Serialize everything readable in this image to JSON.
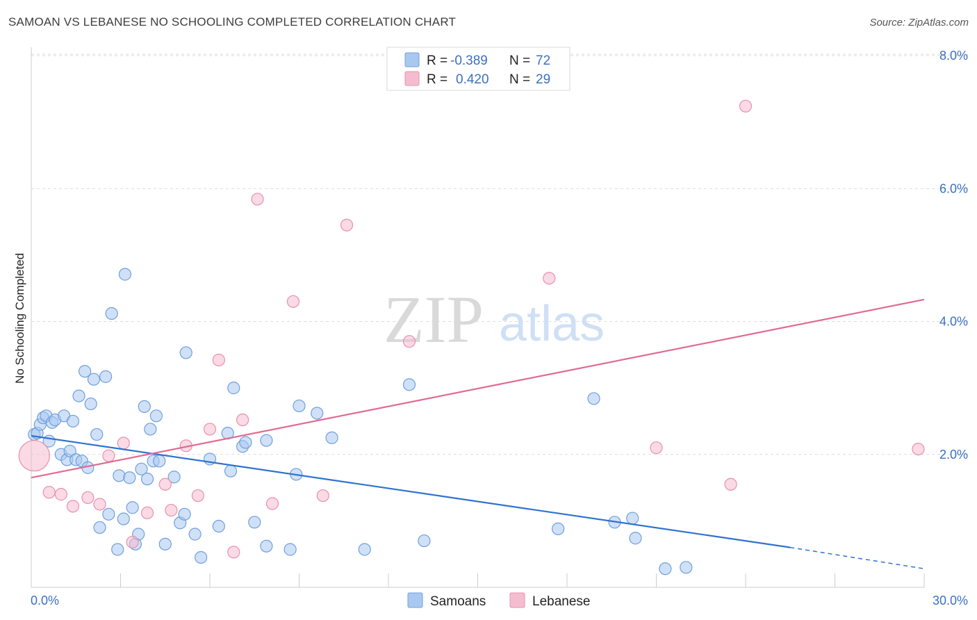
{
  "title": "SAMOAN VS LEBANESE NO SCHOOLING COMPLETED CORRELATION CHART",
  "source": "Source: ZipAtlas.com",
  "watermark": {
    "zip": "ZIP",
    "atlas": "atlas"
  },
  "legend": {
    "r_label": "R =",
    "n_label": "N =",
    "rows": [
      {
        "r": "-0.389",
        "n": "72"
      },
      {
        "r": "0.420",
        "n": "29"
      }
    ]
  },
  "colors": {
    "samoans_fill": "#a9c8f0",
    "samoans_stroke": "#6f9fdc",
    "samoans_line": "#2f72d0",
    "lebanese_fill": "#f5bcd0",
    "lebanese_stroke": "#e890ad",
    "lebanese_line": "#e06a93",
    "axis_text": "#3a6fc4"
  },
  "chart_data": {
    "type": "scatter",
    "title": "SAMOAN VS LEBANESE NO SCHOOLING COMPLETED CORRELATION CHART",
    "xlabel": "",
    "ylabel": "No Schooling Completed",
    "xlim": [
      0,
      30
    ],
    "ylim": [
      0,
      8.5
    ],
    "x_tick_labels": [
      "0.0%",
      "30.0%"
    ],
    "y_ticks": [
      2,
      4,
      6,
      8
    ],
    "y_tick_labels": [
      "2.0%",
      "4.0%",
      "6.0%",
      "8.0%"
    ],
    "grid": true,
    "series": [
      {
        "name": "Samoans",
        "r": -0.389,
        "n": 72,
        "trend": {
          "x0": 0,
          "y0": 2.28,
          "x1": 25.5,
          "y1": 0.6,
          "dash_to_x": 30,
          "dash_to_y": 0.28
        },
        "points": [
          [
            0.1,
            2.3
          ],
          [
            0.2,
            2.32
          ],
          [
            0.3,
            2.45
          ],
          [
            0.4,
            2.55
          ],
          [
            0.5,
            2.58
          ],
          [
            0.6,
            2.2
          ],
          [
            0.7,
            2.48
          ],
          [
            0.8,
            2.52
          ],
          [
            1.0,
            2.0
          ],
          [
            1.1,
            2.58
          ],
          [
            1.2,
            1.92
          ],
          [
            1.3,
            2.05
          ],
          [
            1.4,
            2.5
          ],
          [
            1.5,
            1.92
          ],
          [
            1.6,
            2.88
          ],
          [
            1.7,
            1.9
          ],
          [
            1.8,
            3.25
          ],
          [
            1.9,
            1.8
          ],
          [
            2.0,
            2.76
          ],
          [
            2.1,
            3.13
          ],
          [
            2.2,
            2.3
          ],
          [
            2.3,
            0.9
          ],
          [
            2.5,
            3.17
          ],
          [
            2.6,
            1.1
          ],
          [
            2.7,
            4.12
          ],
          [
            2.9,
            0.57
          ],
          [
            2.95,
            1.68
          ],
          [
            3.1,
            1.03
          ],
          [
            3.15,
            4.71
          ],
          [
            3.3,
            1.65
          ],
          [
            3.4,
            1.2
          ],
          [
            3.5,
            0.65
          ],
          [
            3.6,
            0.8
          ],
          [
            3.7,
            1.78
          ],
          [
            3.8,
            2.72
          ],
          [
            3.9,
            1.63
          ],
          [
            4.0,
            2.38
          ],
          [
            4.1,
            1.9
          ],
          [
            4.2,
            2.58
          ],
          [
            4.3,
            1.9
          ],
          [
            4.5,
            0.65
          ],
          [
            4.8,
            1.66
          ],
          [
            5.0,
            0.97
          ],
          [
            5.15,
            1.1
          ],
          [
            5.2,
            3.53
          ],
          [
            5.5,
            0.8
          ],
          [
            5.7,
            0.45
          ],
          [
            6.0,
            1.93
          ],
          [
            6.3,
            0.92
          ],
          [
            6.6,
            2.32
          ],
          [
            6.7,
            1.75
          ],
          [
            6.8,
            3.0
          ],
          [
            7.1,
            2.12
          ],
          [
            7.2,
            2.18
          ],
          [
            7.5,
            0.98
          ],
          [
            7.9,
            0.62
          ],
          [
            7.9,
            2.21
          ],
          [
            8.7,
            0.57
          ],
          [
            8.9,
            1.7
          ],
          [
            9.0,
            2.73
          ],
          [
            9.6,
            2.62
          ],
          [
            10.1,
            2.25
          ],
          [
            11.2,
            0.57
          ],
          [
            12.7,
            3.05
          ],
          [
            13.2,
            0.7
          ],
          [
            17.7,
            0.88
          ],
          [
            18.9,
            2.84
          ],
          [
            19.6,
            0.98
          ],
          [
            20.2,
            1.04
          ],
          [
            20.3,
            0.74
          ],
          [
            21.3,
            0.28
          ],
          [
            22.0,
            0.3
          ]
        ]
      },
      {
        "name": "Lebanese",
        "r": 0.42,
        "n": 29,
        "trend": {
          "x0": 0,
          "y0": 1.65,
          "x1": 30,
          "y1": 4.33
        },
        "points": [
          [
            0.1,
            1.98
          ],
          [
            0.6,
            1.43
          ],
          [
            1.0,
            1.4
          ],
          [
            1.4,
            1.22
          ],
          [
            1.9,
            1.35
          ],
          [
            2.3,
            1.25
          ],
          [
            2.6,
            1.98
          ],
          [
            3.1,
            2.17
          ],
          [
            3.4,
            0.68
          ],
          [
            3.9,
            1.12
          ],
          [
            4.5,
            1.55
          ],
          [
            4.7,
            1.16
          ],
          [
            5.2,
            2.13
          ],
          [
            5.6,
            1.38
          ],
          [
            6.0,
            2.38
          ],
          [
            6.3,
            3.42
          ],
          [
            6.8,
            0.53
          ],
          [
            7.1,
            2.52
          ],
          [
            7.6,
            5.84
          ],
          [
            8.1,
            1.26
          ],
          [
            8.8,
            4.3
          ],
          [
            9.8,
            1.38
          ],
          [
            10.6,
            5.45
          ],
          [
            12.7,
            3.7
          ],
          [
            17.4,
            4.65
          ],
          [
            21.0,
            2.1
          ],
          [
            23.5,
            1.55
          ],
          [
            24.0,
            7.24
          ],
          [
            29.8,
            2.08
          ]
        ]
      }
    ],
    "legend_position": "top-center"
  }
}
